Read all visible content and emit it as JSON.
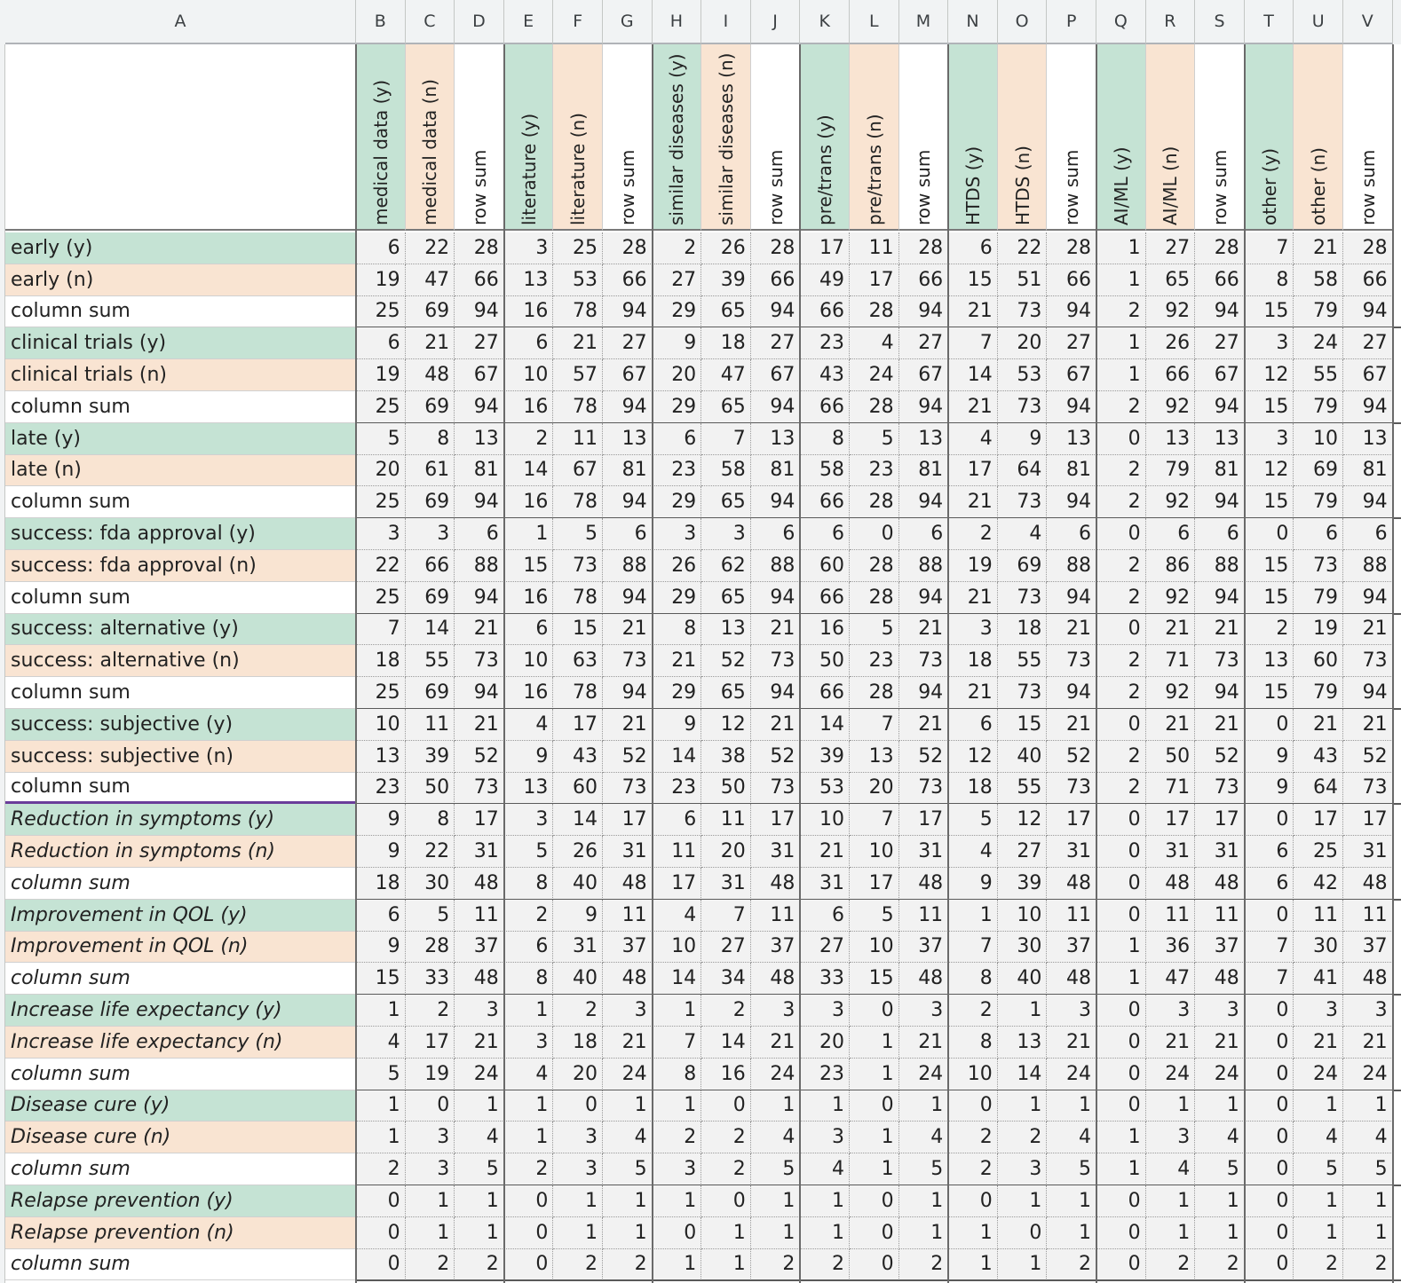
{
  "columns": [
    "A",
    "B",
    "C",
    "D",
    "E",
    "F",
    "G",
    "H",
    "I",
    "J",
    "K",
    "L",
    "M",
    "N",
    "O",
    "P",
    "Q",
    "R",
    "S",
    "T",
    "U",
    "V"
  ],
  "headers": [
    {
      "label": "medical data (y)",
      "kind": "y"
    },
    {
      "label": "medical data (n)",
      "kind": "n"
    },
    {
      "label": "row sum",
      "kind": "s"
    },
    {
      "label": "literature (y)",
      "kind": "y"
    },
    {
      "label": "literature (n)",
      "kind": "n"
    },
    {
      "label": "row sum",
      "kind": "s"
    },
    {
      "label": "similar diseases (y)",
      "kind": "y"
    },
    {
      "label": "similar diseases (n)",
      "kind": "n"
    },
    {
      "label": "row sum",
      "kind": "s"
    },
    {
      "label": "pre/trans (y)",
      "kind": "y"
    },
    {
      "label": "pre/trans (n)",
      "kind": "n"
    },
    {
      "label": "row sum",
      "kind": "s"
    },
    {
      "label": "HTDS (y)",
      "kind": "y"
    },
    {
      "label": "HTDS (n)",
      "kind": "n"
    },
    {
      "label": "row sum",
      "kind": "s"
    },
    {
      "label": "AI/ML (y)",
      "kind": "y"
    },
    {
      "label": "AI/ML (n)",
      "kind": "n"
    },
    {
      "label": "row sum",
      "kind": "s"
    },
    {
      "label": "other (y)",
      "kind": "y"
    },
    {
      "label": "other (n)",
      "kind": "n"
    },
    {
      "label": "row sum",
      "kind": "s"
    }
  ],
  "colors": {
    "yes": "#c5e3d4",
    "no": "#f9e4d2",
    "sum": "#ffffff",
    "cell": "#f2f2f2",
    "separator": "#5a5a5a",
    "highlight_border": "#6a3d9a"
  },
  "rows": [
    {
      "label": "early (y)",
      "kind": "y",
      "italic": false,
      "values": [
        6,
        22,
        28,
        3,
        25,
        28,
        2,
        26,
        28,
        17,
        11,
        28,
        6,
        22,
        28,
        1,
        27,
        28,
        7,
        21,
        28
      ]
    },
    {
      "label": "early (n)",
      "kind": "n",
      "italic": false,
      "values": [
        19,
        47,
        66,
        13,
        53,
        66,
        27,
        39,
        66,
        49,
        17,
        66,
        15,
        51,
        66,
        1,
        65,
        66,
        8,
        58,
        66
      ]
    },
    {
      "label": "column sum",
      "kind": "s",
      "italic": false,
      "values": [
        25,
        69,
        94,
        16,
        78,
        94,
        29,
        65,
        94,
        66,
        28,
        94,
        21,
        73,
        94,
        2,
        92,
        94,
        15,
        79,
        94
      ]
    },
    {
      "label": "clinical trials (y)",
      "kind": "y",
      "italic": false,
      "values": [
        6,
        21,
        27,
        6,
        21,
        27,
        9,
        18,
        27,
        23,
        4,
        27,
        7,
        20,
        27,
        1,
        26,
        27,
        3,
        24,
        27
      ]
    },
    {
      "label": "clinical trials (n)",
      "kind": "n",
      "italic": false,
      "values": [
        19,
        48,
        67,
        10,
        57,
        67,
        20,
        47,
        67,
        43,
        24,
        67,
        14,
        53,
        67,
        1,
        66,
        67,
        12,
        55,
        67
      ]
    },
    {
      "label": "column sum",
      "kind": "s",
      "italic": false,
      "values": [
        25,
        69,
        94,
        16,
        78,
        94,
        29,
        65,
        94,
        66,
        28,
        94,
        21,
        73,
        94,
        2,
        92,
        94,
        15,
        79,
        94
      ]
    },
    {
      "label": "late (y)",
      "kind": "y",
      "italic": false,
      "values": [
        5,
        8,
        13,
        2,
        11,
        13,
        6,
        7,
        13,
        8,
        5,
        13,
        4,
        9,
        13,
        0,
        13,
        13,
        3,
        10,
        13
      ]
    },
    {
      "label": "late (n)",
      "kind": "n",
      "italic": false,
      "values": [
        20,
        61,
        81,
        14,
        67,
        81,
        23,
        58,
        81,
        58,
        23,
        81,
        17,
        64,
        81,
        2,
        79,
        81,
        12,
        69,
        81
      ]
    },
    {
      "label": "column sum",
      "kind": "s",
      "italic": false,
      "values": [
        25,
        69,
        94,
        16,
        78,
        94,
        29,
        65,
        94,
        66,
        28,
        94,
        21,
        73,
        94,
        2,
        92,
        94,
        15,
        79,
        94
      ]
    },
    {
      "label": "success: fda approval (y)",
      "kind": "y",
      "italic": false,
      "values": [
        3,
        3,
        6,
        1,
        5,
        6,
        3,
        3,
        6,
        6,
        0,
        6,
        2,
        4,
        6,
        0,
        6,
        6,
        0,
        6,
        6
      ]
    },
    {
      "label": "success: fda approval (n)",
      "kind": "n",
      "italic": false,
      "values": [
        22,
        66,
        88,
        15,
        73,
        88,
        26,
        62,
        88,
        60,
        28,
        88,
        19,
        69,
        88,
        2,
        86,
        88,
        15,
        73,
        88
      ]
    },
    {
      "label": "column sum",
      "kind": "s",
      "italic": false,
      "values": [
        25,
        69,
        94,
        16,
        78,
        94,
        29,
        65,
        94,
        66,
        28,
        94,
        21,
        73,
        94,
        2,
        92,
        94,
        15,
        79,
        94
      ]
    },
    {
      "label": "success: alternative (y)",
      "kind": "y",
      "italic": false,
      "values": [
        7,
        14,
        21,
        6,
        15,
        21,
        8,
        13,
        21,
        16,
        5,
        21,
        3,
        18,
        21,
        0,
        21,
        21,
        2,
        19,
        21
      ]
    },
    {
      "label": "success: alternative (n)",
      "kind": "n",
      "italic": false,
      "values": [
        18,
        55,
        73,
        10,
        63,
        73,
        21,
        52,
        73,
        50,
        23,
        73,
        18,
        55,
        73,
        2,
        71,
        73,
        13,
        60,
        73
      ]
    },
    {
      "label": "column sum",
      "kind": "s",
      "italic": false,
      "values": [
        25,
        69,
        94,
        16,
        78,
        94,
        29,
        65,
        94,
        66,
        28,
        94,
        21,
        73,
        94,
        2,
        92,
        94,
        15,
        79,
        94
      ]
    },
    {
      "label": "success: subjective (y)",
      "kind": "y",
      "italic": false,
      "values": [
        10,
        11,
        21,
        4,
        17,
        21,
        9,
        12,
        21,
        14,
        7,
        21,
        6,
        15,
        21,
        0,
        21,
        21,
        0,
        21,
        21
      ]
    },
    {
      "label": "success: subjective (n)",
      "kind": "n",
      "italic": false,
      "values": [
        13,
        39,
        52,
        9,
        43,
        52,
        14,
        38,
        52,
        39,
        13,
        52,
        12,
        40,
        52,
        2,
        50,
        52,
        9,
        43,
        52
      ]
    },
    {
      "label": "column sum",
      "kind": "s",
      "italic": false,
      "selected": true,
      "values": [
        23,
        50,
        73,
        13,
        60,
        73,
        23,
        50,
        73,
        53,
        20,
        73,
        18,
        55,
        73,
        2,
        71,
        73,
        9,
        64,
        73
      ]
    },
    {
      "label": "Reduction in symptoms (y)",
      "kind": "y",
      "italic": true,
      "values": [
        9,
        8,
        17,
        3,
        14,
        17,
        6,
        11,
        17,
        10,
        7,
        17,
        5,
        12,
        17,
        0,
        17,
        17,
        0,
        17,
        17
      ]
    },
    {
      "label": "Reduction in symptoms (n)",
      "kind": "n",
      "italic": true,
      "values": [
        9,
        22,
        31,
        5,
        26,
        31,
        11,
        20,
        31,
        21,
        10,
        31,
        4,
        27,
        31,
        0,
        31,
        31,
        6,
        25,
        31
      ]
    },
    {
      "label": "column sum",
      "kind": "s",
      "italic": true,
      "values": [
        18,
        30,
        48,
        8,
        40,
        48,
        17,
        31,
        48,
        31,
        17,
        48,
        9,
        39,
        48,
        0,
        48,
        48,
        6,
        42,
        48
      ]
    },
    {
      "label": "Improvement in QOL (y)",
      "kind": "y",
      "italic": true,
      "values": [
        6,
        5,
        11,
        2,
        9,
        11,
        4,
        7,
        11,
        6,
        5,
        11,
        1,
        10,
        11,
        0,
        11,
        11,
        0,
        11,
        11
      ]
    },
    {
      "label": "Improvement in QOL (n)",
      "kind": "n",
      "italic": true,
      "values": [
        9,
        28,
        37,
        6,
        31,
        37,
        10,
        27,
        37,
        27,
        10,
        37,
        7,
        30,
        37,
        1,
        36,
        37,
        7,
        30,
        37
      ]
    },
    {
      "label": "column sum",
      "kind": "s",
      "italic": true,
      "values": [
        15,
        33,
        48,
        8,
        40,
        48,
        14,
        34,
        48,
        33,
        15,
        48,
        8,
        40,
        48,
        1,
        47,
        48,
        7,
        41,
        48
      ]
    },
    {
      "label": "Increase life expectancy (y)",
      "kind": "y",
      "italic": true,
      "values": [
        1,
        2,
        3,
        1,
        2,
        3,
        1,
        2,
        3,
        3,
        0,
        3,
        2,
        1,
        3,
        0,
        3,
        3,
        0,
        3,
        3
      ]
    },
    {
      "label": "Increase life expectancy (n)",
      "kind": "n",
      "italic": true,
      "values": [
        4,
        17,
        21,
        3,
        18,
        21,
        7,
        14,
        21,
        20,
        1,
        21,
        8,
        13,
        21,
        0,
        21,
        21,
        0,
        21,
        21
      ]
    },
    {
      "label": "column sum",
      "kind": "s",
      "italic": true,
      "values": [
        5,
        19,
        24,
        4,
        20,
        24,
        8,
        16,
        24,
        23,
        1,
        24,
        10,
        14,
        24,
        0,
        24,
        24,
        0,
        24,
        24
      ]
    },
    {
      "label": "Disease cure (y)",
      "kind": "y",
      "italic": true,
      "values": [
        1,
        0,
        1,
        1,
        0,
        1,
        1,
        0,
        1,
        1,
        0,
        1,
        0,
        1,
        1,
        0,
        1,
        1,
        0,
        1,
        1
      ]
    },
    {
      "label": "Disease cure (n)",
      "kind": "n",
      "italic": true,
      "values": [
        1,
        3,
        4,
        1,
        3,
        4,
        2,
        2,
        4,
        3,
        1,
        4,
        2,
        2,
        4,
        1,
        3,
        4,
        0,
        4,
        4
      ]
    },
    {
      "label": "column sum",
      "kind": "s",
      "italic": true,
      "values": [
        2,
        3,
        5,
        2,
        3,
        5,
        3,
        2,
        5,
        4,
        1,
        5,
        2,
        3,
        5,
        1,
        4,
        5,
        0,
        5,
        5
      ]
    },
    {
      "label": "Relapse prevention (y)",
      "kind": "y",
      "italic": true,
      "values": [
        0,
        1,
        1,
        0,
        1,
        1,
        1,
        0,
        1,
        1,
        0,
        1,
        0,
        1,
        1,
        0,
        1,
        1,
        0,
        1,
        1
      ]
    },
    {
      "label": "Relapse prevention (n)",
      "kind": "n",
      "italic": true,
      "values": [
        0,
        1,
        1,
        0,
        1,
        1,
        0,
        1,
        1,
        1,
        0,
        1,
        1,
        0,
        1,
        0,
        1,
        1,
        0,
        1,
        1
      ]
    },
    {
      "label": "column sum",
      "kind": "s",
      "italic": true,
      "values": [
        0,
        2,
        2,
        0,
        2,
        2,
        1,
        1,
        2,
        2,
        0,
        2,
        1,
        1,
        2,
        0,
        2,
        2,
        0,
        2,
        2
      ]
    }
  ]
}
